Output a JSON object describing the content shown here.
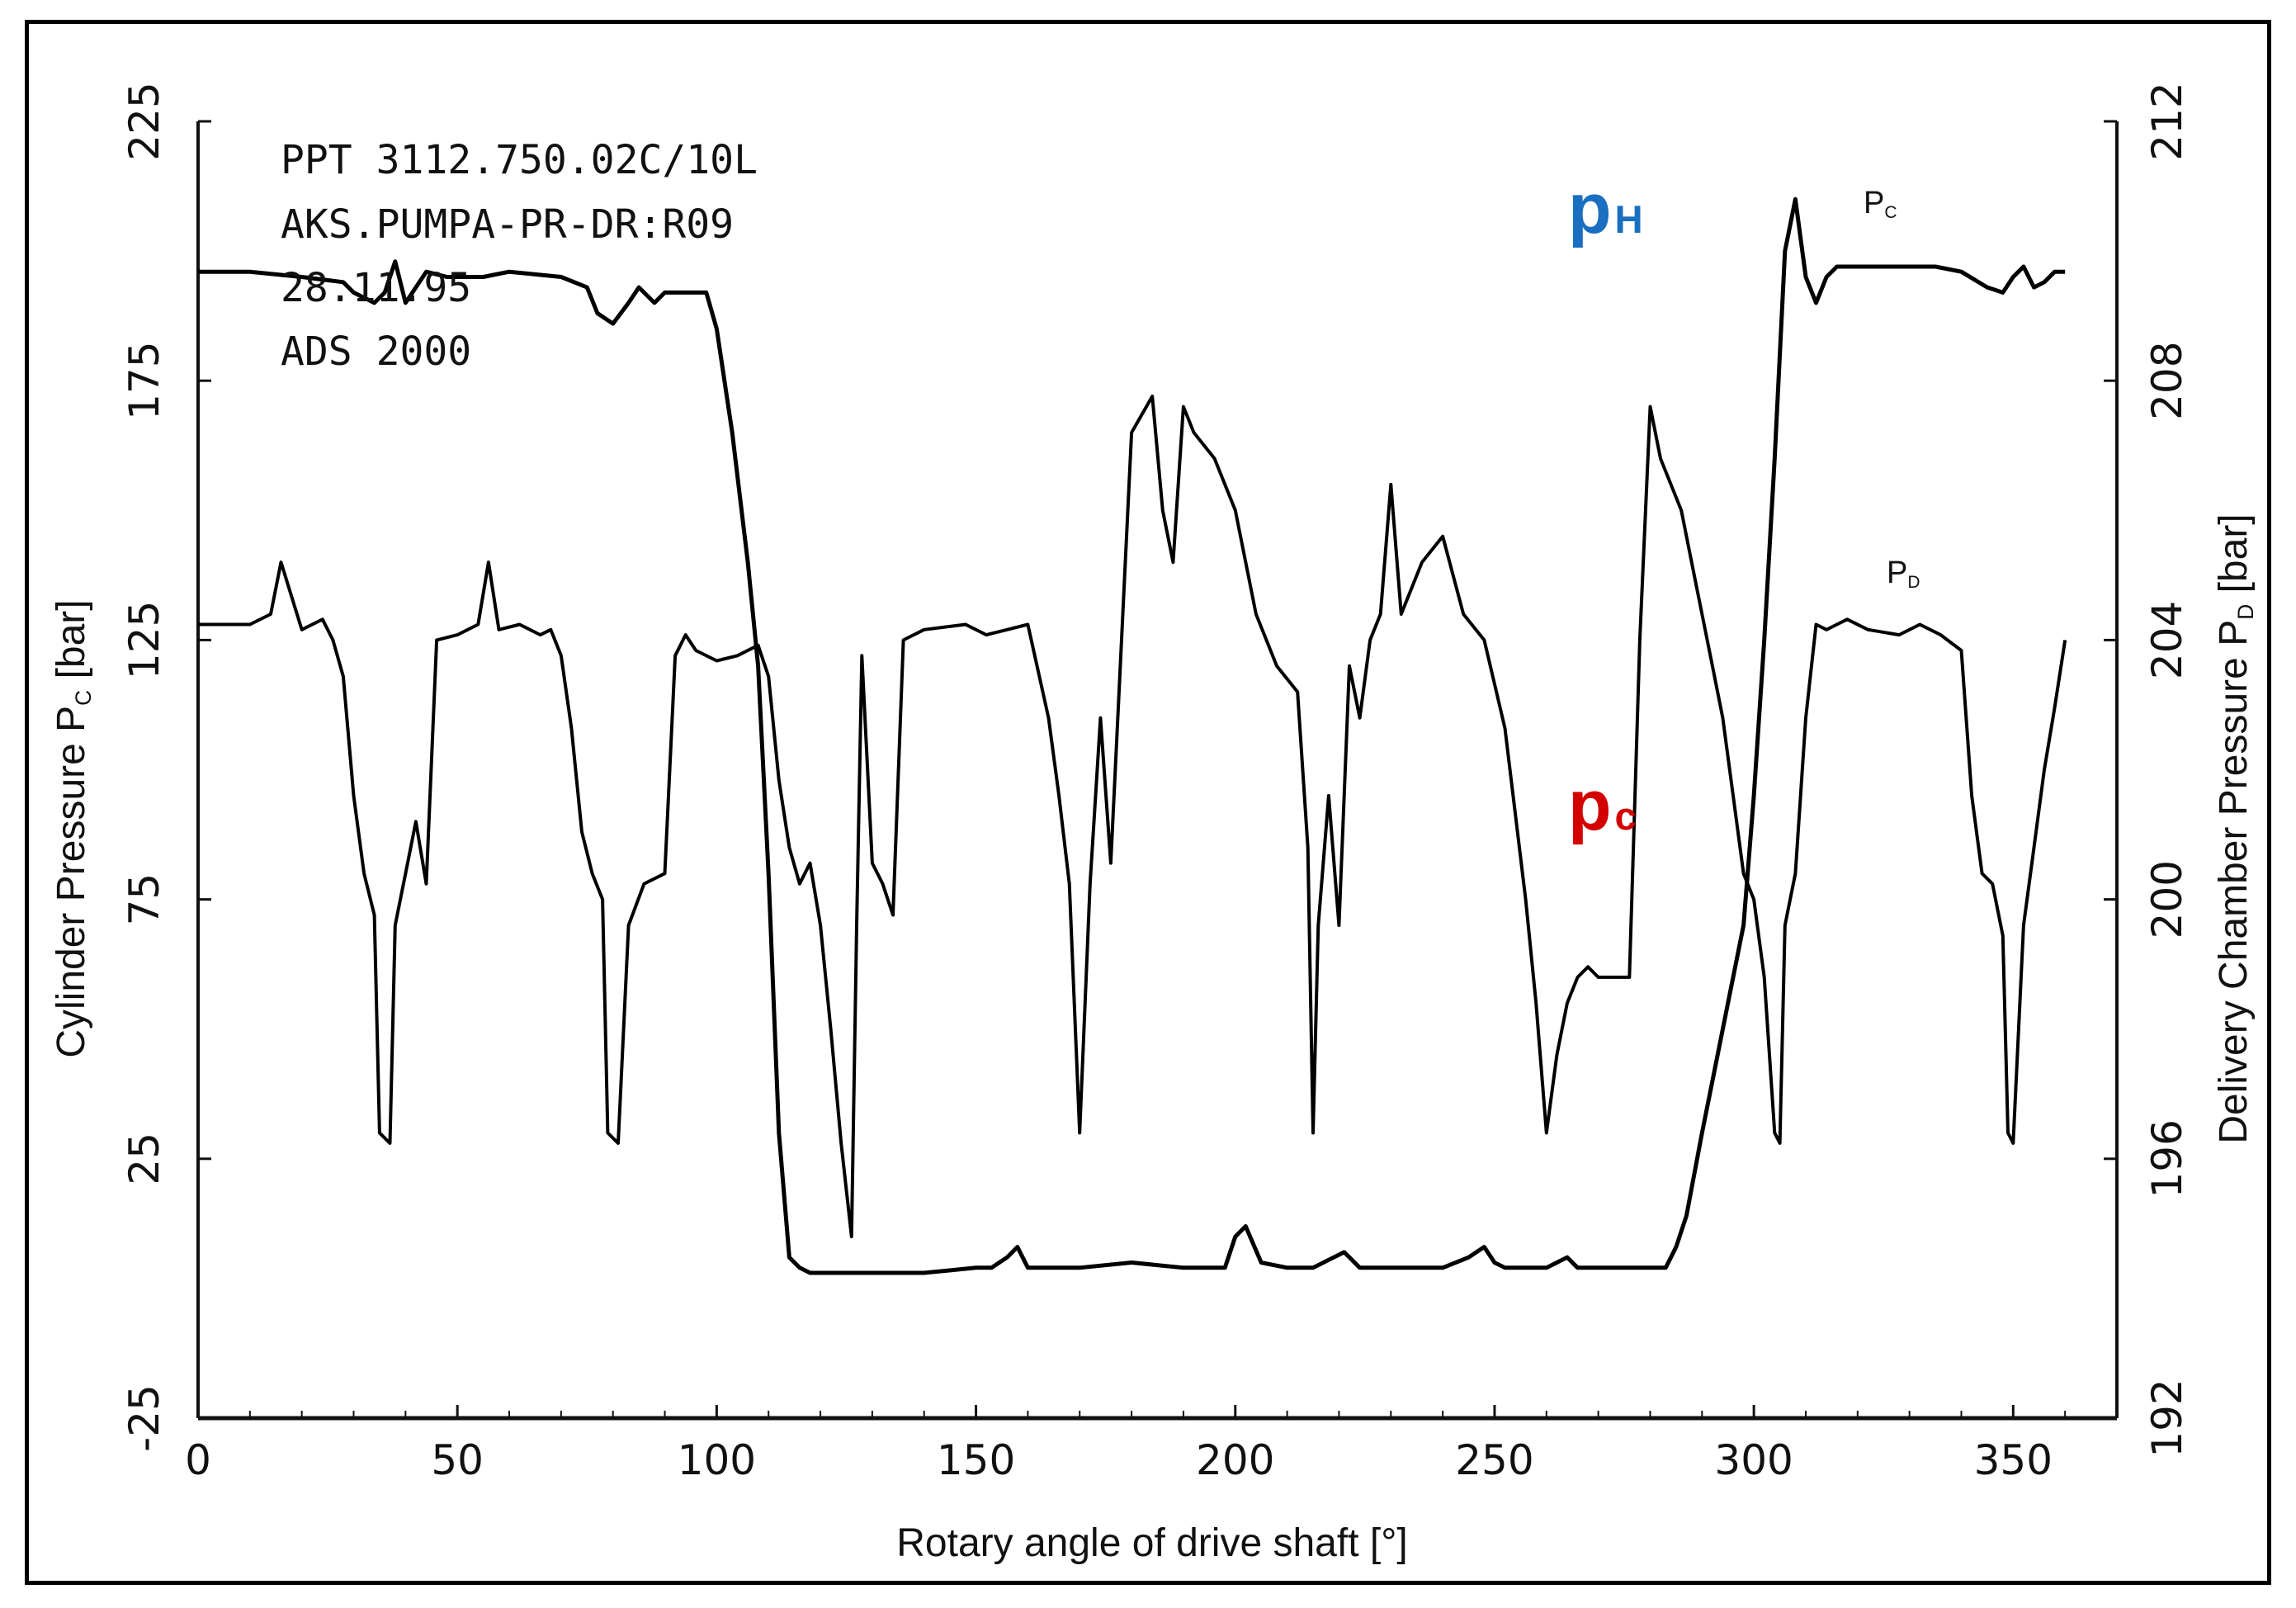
{
  "chart_data": {
    "type": "line",
    "xlabel": "Rotary angle of drive shaft [°]",
    "ylabel": {
      "main": "Cylinder Pressure  P",
      "sub": "C",
      "unit": "  [bar]"
    },
    "y2label": {
      "main": "Delivery Chamber Pressure  P",
      "sub": "D",
      "unit": "  [bar]"
    },
    "xlim": [
      0,
      370
    ],
    "ylim": [
      -25,
      225
    ],
    "y2lim": [
      192,
      212
    ],
    "x_ticks": [
      0,
      50,
      100,
      150,
      200,
      250,
      300,
      350
    ],
    "x_tick_labels": [
      "0",
      "50",
      "100",
      "150",
      "200",
      "250",
      "300",
      "350"
    ],
    "y_ticks": [
      225,
      175,
      125,
      75,
      25,
      -25
    ],
    "y_tick_labels": [
      "225",
      "175",
      "125",
      "75",
      "25",
      "-25"
    ],
    "y2_ticks": [
      212,
      208,
      204,
      200,
      196,
      192
    ],
    "y2_tick_labels": [
      "212",
      "208",
      "204",
      "200",
      "196",
      "192"
    ],
    "grid": false,
    "annotations": {
      "header_lines": [
        "PPT 3112.750.02C/10L",
        "AKS.PUMPA-PR-DR:R09",
        "28.11.95",
        "ADS 2000"
      ],
      "pc_small": {
        "main": "P",
        "sub": "C"
      },
      "pd_small": {
        "main": "P",
        "sub": "D"
      },
      "ph_big": {
        "main": "p",
        "sub": "H",
        "color": "#1a6fc0"
      },
      "pc_big": {
        "main": "p",
        "sub": "c",
        "color": "#d40000"
      }
    },
    "series": [
      {
        "name": "Pc",
        "axis": "left",
        "color": "#000000",
        "x": [
          0,
          5,
          10,
          20,
          28,
          30,
          34,
          36,
          38,
          40,
          44,
          48,
          55,
          60,
          70,
          75,
          77,
          80,
          83,
          85,
          88,
          90,
          95,
          98,
          100,
          103,
          106,
          108,
          110,
          112,
          114,
          116,
          118,
          120,
          130,
          140,
          150,
          153,
          156,
          158,
          160,
          170,
          180,
          190,
          198,
          200,
          202,
          205,
          210,
          215,
          219,
          221,
          224,
          230,
          240,
          245,
          248,
          250,
          252,
          255,
          260,
          262,
          264,
          266,
          268,
          272,
          275,
          280,
          283,
          285,
          287,
          290,
          292,
          295,
          298,
          300,
          302,
          304,
          306,
          308,
          310,
          312,
          314,
          316,
          320,
          330,
          335,
          340,
          345,
          348,
          350,
          352,
          354,
          356,
          358,
          360
        ],
        "y": [
          196,
          196,
          196,
          195,
          194,
          192,
          190,
          192,
          198,
          190,
          196,
          195,
          195,
          196,
          195,
          193,
          188,
          186,
          190,
          193,
          190,
          192,
          192,
          192,
          185,
          165,
          140,
          120,
          80,
          30,
          6,
          4,
          3,
          3,
          3,
          3,
          4,
          4,
          6,
          8,
          4,
          4,
          5,
          4,
          4,
          10,
          12,
          5,
          4,
          4,
          6,
          7,
          4,
          4,
          4,
          6,
          8,
          5,
          4,
          4,
          4,
          5,
          6,
          4,
          4,
          4,
          4,
          4,
          4,
          8,
          14,
          30,
          40,
          55,
          70,
          95,
          125,
          160,
          200,
          210,
          195,
          190,
          195,
          197,
          197,
          197,
          197,
          196,
          193,
          192,
          195,
          197,
          193,
          194,
          196,
          196
        ]
      },
      {
        "name": "Pd",
        "axis": "left",
        "color": "#000000",
        "x": [
          0,
          10,
          14,
          16,
          20,
          24,
          26,
          28,
          30,
          32,
          34,
          35,
          37,
          38,
          40,
          42,
          44,
          46,
          50,
          54,
          56,
          58,
          62,
          66,
          68,
          70,
          72,
          74,
          76,
          78,
          79,
          81,
          83,
          86,
          90,
          92,
          94,
          96,
          100,
          104,
          108,
          110,
          112,
          114,
          116,
          118,
          120,
          122,
          124,
          126,
          127,
          128,
          130,
          132,
          134,
          136,
          140,
          148,
          152,
          156,
          160,
          164,
          166,
          168,
          170,
          172,
          174,
          176,
          180,
          184,
          186,
          188,
          190,
          192,
          196,
          200,
          204,
          208,
          212,
          214,
          215,
          216,
          218,
          220,
          222,
          224,
          226,
          228,
          230,
          232,
          236,
          240,
          244,
          248,
          252,
          256,
          258,
          260,
          262,
          264,
          266,
          268,
          270,
          276,
          278,
          280,
          282,
          284,
          286,
          288,
          290,
          292,
          294,
          296,
          298,
          300,
          302,
          304,
          305,
          306,
          308,
          310,
          312,
          314,
          316,
          318,
          322,
          328,
          332,
          336,
          340,
          342,
          344,
          346,
          348,
          349,
          350,
          352,
          354,
          356,
          358,
          360
        ],
        "y": [
          128,
          128,
          130,
          140,
          127,
          129,
          125,
          118,
          95,
          80,
          72,
          30,
          28,
          70,
          80,
          90,
          78,
          125,
          126,
          128,
          140,
          127,
          128,
          126,
          127,
          122,
          108,
          88,
          80,
          75,
          30,
          28,
          70,
          78,
          80,
          122,
          126,
          123,
          121,
          122,
          124,
          118,
          98,
          85,
          78,
          82,
          70,
          50,
          28,
          10,
          70,
          122,
          82,
          78,
          72,
          125,
          127,
          128,
          126,
          127,
          128,
          110,
          95,
          78,
          30,
          78,
          110,
          82,
          165,
          172,
          150,
          140,
          170,
          165,
          160,
          150,
          130,
          120,
          115,
          85,
          30,
          70,
          95,
          70,
          120,
          110,
          125,
          130,
          155,
          130,
          140,
          145,
          130,
          125,
          108,
          75,
          55,
          30,
          45,
          55,
          60,
          62,
          60,
          60,
          125,
          170,
          160,
          155,
          150,
          140,
          130,
          120,
          110,
          95,
          80,
          75,
          60,
          30,
          28,
          70,
          80,
          110,
          128,
          127,
          128,
          129,
          127,
          126,
          128,
          126,
          123,
          95,
          80,
          78,
          68,
          30,
          28,
          70,
          85,
          100,
          112,
          125
        ]
      }
    ]
  }
}
